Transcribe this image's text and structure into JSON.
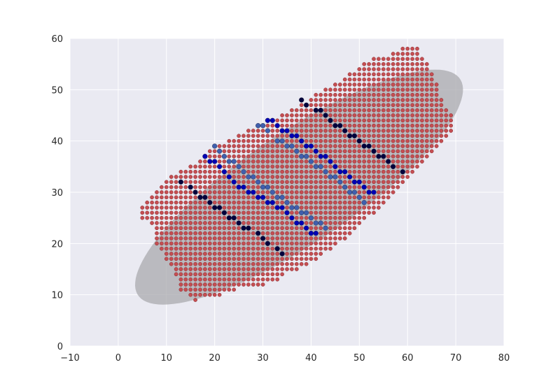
{
  "chart_data": {
    "type": "scatter",
    "title": "",
    "xlabel": "",
    "ylabel": "",
    "xlim": [
      -10,
      80
    ],
    "ylim": [
      0,
      60
    ],
    "xticks": [
      -10,
      0,
      10,
      20,
      30,
      40,
      50,
      60,
      70,
      80
    ],
    "yticks": [
      0,
      10,
      20,
      30,
      40,
      50,
      60
    ],
    "grid": true,
    "legend": "none",
    "colors": {
      "plot_background": "#eaeaf2",
      "grid": "#ffffff",
      "ellipse": "#a9a9ae",
      "red_points": "#c44e52",
      "red_edges": "#8b2a2d",
      "blue_light": "#3f5fad",
      "blue_mid": "#0000b4",
      "blue_dark": "#00003c"
    },
    "ellipse": {
      "center": [
        37.5,
        31.0
      ],
      "semi_major": 39.5,
      "semi_minor": 11.0,
      "angle_deg": 32
    },
    "red_grid": {
      "x_step": 1,
      "y_step": 1,
      "row_extents": [
        [
          9,
          16,
          16
        ],
        [
          10,
          15,
          21
        ],
        [
          11,
          13,
          24
        ],
        [
          12,
          13,
          30
        ],
        [
          13,
          13,
          33
        ],
        [
          14,
          12,
          34
        ],
        [
          15,
          12,
          37
        ],
        [
          16,
          11,
          39
        ],
        [
          17,
          10,
          41
        ],
        [
          18,
          10,
          42
        ],
        [
          19,
          9,
          44
        ],
        [
          20,
          8,
          45
        ],
        [
          21,
          8,
          47
        ],
        [
          22,
          8,
          48
        ],
        [
          23,
          8,
          49
        ],
        [
          24,
          7,
          50
        ],
        [
          25,
          5,
          51
        ],
        [
          26,
          5,
          53
        ],
        [
          27,
          5,
          54
        ],
        [
          28,
          6,
          55
        ],
        [
          29,
          7,
          56
        ],
        [
          30,
          8,
          57
        ],
        [
          31,
          9,
          58
        ],
        [
          32,
          10,
          59
        ],
        [
          33,
          11,
          60
        ],
        [
          34,
          13,
          61
        ],
        [
          35,
          15,
          62
        ],
        [
          36,
          17,
          63
        ],
        [
          37,
          18,
          64
        ],
        [
          38,
          19,
          65
        ],
        [
          39,
          21,
          66
        ],
        [
          40,
          23,
          67
        ],
        [
          41,
          25,
          68
        ],
        [
          42,
          27,
          69
        ],
        [
          43,
          29,
          69
        ],
        [
          44,
          31,
          69
        ],
        [
          45,
          34,
          69
        ],
        [
          46,
          36,
          68
        ],
        [
          47,
          38,
          67
        ],
        [
          48,
          40,
          67
        ],
        [
          49,
          41,
          66
        ],
        [
          50,
          43,
          66
        ],
        [
          51,
          45,
          66
        ],
        [
          52,
          47,
          65
        ],
        [
          53,
          48,
          65
        ],
        [
          54,
          50,
          64
        ],
        [
          55,
          51,
          64
        ],
        [
          56,
          53,
          63
        ],
        [
          57,
          57,
          62
        ],
        [
          58,
          59,
          62
        ]
      ]
    },
    "blue_points": [
      {
        "x": 13,
        "y": 32,
        "tone": "dark"
      },
      {
        "x": 15,
        "y": 31,
        "tone": "dark"
      },
      {
        "x": 16,
        "y": 30,
        "tone": "dark"
      },
      {
        "x": 17,
        "y": 29,
        "tone": "dark"
      },
      {
        "x": 18,
        "y": 29,
        "tone": "dark"
      },
      {
        "x": 19,
        "y": 28,
        "tone": "dark"
      },
      {
        "x": 20,
        "y": 27,
        "tone": "dark"
      },
      {
        "x": 21,
        "y": 27,
        "tone": "dark"
      },
      {
        "x": 22,
        "y": 26,
        "tone": "dark"
      },
      {
        "x": 23,
        "y": 25,
        "tone": "dark"
      },
      {
        "x": 24,
        "y": 25,
        "tone": "dark"
      },
      {
        "x": 25,
        "y": 24,
        "tone": "dark"
      },
      {
        "x": 26,
        "y": 23,
        "tone": "dark"
      },
      {
        "x": 27,
        "y": 23,
        "tone": "dark"
      },
      {
        "x": 29,
        "y": 22,
        "tone": "dark"
      },
      {
        "x": 30,
        "y": 21,
        "tone": "dark"
      },
      {
        "x": 31,
        "y": 20,
        "tone": "dark"
      },
      {
        "x": 33,
        "y": 19,
        "tone": "dark"
      },
      {
        "x": 34,
        "y": 18,
        "tone": "dark"
      },
      {
        "x": 18,
        "y": 37,
        "tone": "mid"
      },
      {
        "x": 19,
        "y": 36,
        "tone": "mid"
      },
      {
        "x": 20,
        "y": 36,
        "tone": "mid"
      },
      {
        "x": 21,
        "y": 35,
        "tone": "mid"
      },
      {
        "x": 22,
        "y": 34,
        "tone": "mid"
      },
      {
        "x": 23,
        "y": 33,
        "tone": "mid"
      },
      {
        "x": 24,
        "y": 32,
        "tone": "mid"
      },
      {
        "x": 25,
        "y": 31,
        "tone": "mid"
      },
      {
        "x": 26,
        "y": 31,
        "tone": "mid"
      },
      {
        "x": 27,
        "y": 30,
        "tone": "mid"
      },
      {
        "x": 28,
        "y": 30,
        "tone": "mid"
      },
      {
        "x": 29,
        "y": 29,
        "tone": "mid"
      },
      {
        "x": 30,
        "y": 29,
        "tone": "mid"
      },
      {
        "x": 31,
        "y": 28,
        "tone": "mid"
      },
      {
        "x": 32,
        "y": 28,
        "tone": "mid"
      },
      {
        "x": 33,
        "y": 27,
        "tone": "mid"
      },
      {
        "x": 34,
        "y": 27,
        "tone": "mid"
      },
      {
        "x": 35,
        "y": 26,
        "tone": "mid"
      },
      {
        "x": 36,
        "y": 25,
        "tone": "mid"
      },
      {
        "x": 37,
        "y": 24,
        "tone": "mid"
      },
      {
        "x": 38,
        "y": 24,
        "tone": "mid"
      },
      {
        "x": 39,
        "y": 23,
        "tone": "mid"
      },
      {
        "x": 40,
        "y": 22,
        "tone": "mid"
      },
      {
        "x": 41,
        "y": 22,
        "tone": "mid"
      },
      {
        "x": 20,
        "y": 39,
        "tone": "light"
      },
      {
        "x": 21,
        "y": 38,
        "tone": "light"
      },
      {
        "x": 22,
        "y": 37,
        "tone": "light"
      },
      {
        "x": 23,
        "y": 36,
        "tone": "light"
      },
      {
        "x": 24,
        "y": 36,
        "tone": "light"
      },
      {
        "x": 25,
        "y": 35,
        "tone": "light"
      },
      {
        "x": 26,
        "y": 34,
        "tone": "light"
      },
      {
        "x": 27,
        "y": 33,
        "tone": "light"
      },
      {
        "x": 28,
        "y": 33,
        "tone": "light"
      },
      {
        "x": 29,
        "y": 32,
        "tone": "light"
      },
      {
        "x": 30,
        "y": 31,
        "tone": "light"
      },
      {
        "x": 31,
        "y": 31,
        "tone": "light"
      },
      {
        "x": 32,
        "y": 30,
        "tone": "light"
      },
      {
        "x": 33,
        "y": 29,
        "tone": "light"
      },
      {
        "x": 34,
        "y": 29,
        "tone": "light"
      },
      {
        "x": 35,
        "y": 28,
        "tone": "light"
      },
      {
        "x": 36,
        "y": 27,
        "tone": "light"
      },
      {
        "x": 37,
        "y": 27,
        "tone": "light"
      },
      {
        "x": 38,
        "y": 26,
        "tone": "light"
      },
      {
        "x": 39,
        "y": 26,
        "tone": "light"
      },
      {
        "x": 40,
        "y": 25,
        "tone": "light"
      },
      {
        "x": 41,
        "y": 24,
        "tone": "light"
      },
      {
        "x": 42,
        "y": 24,
        "tone": "light"
      },
      {
        "x": 43,
        "y": 23,
        "tone": "light"
      },
      {
        "x": 29,
        "y": 43,
        "tone": "light"
      },
      {
        "x": 30,
        "y": 43,
        "tone": "light"
      },
      {
        "x": 31,
        "y": 42,
        "tone": "light"
      },
      {
        "x": 33,
        "y": 40,
        "tone": "light"
      },
      {
        "x": 34,
        "y": 40,
        "tone": "light"
      },
      {
        "x": 35,
        "y": 39,
        "tone": "light"
      },
      {
        "x": 36,
        "y": 39,
        "tone": "light"
      },
      {
        "x": 37,
        "y": 38,
        "tone": "light"
      },
      {
        "x": 38,
        "y": 37,
        "tone": "light"
      },
      {
        "x": 39,
        "y": 37,
        "tone": "light"
      },
      {
        "x": 40,
        "y": 36,
        "tone": "light"
      },
      {
        "x": 41,
        "y": 35,
        "tone": "light"
      },
      {
        "x": 42,
        "y": 35,
        "tone": "light"
      },
      {
        "x": 43,
        "y": 34,
        "tone": "light"
      },
      {
        "x": 44,
        "y": 33,
        "tone": "light"
      },
      {
        "x": 45,
        "y": 33,
        "tone": "light"
      },
      {
        "x": 46,
        "y": 32,
        "tone": "light"
      },
      {
        "x": 47,
        "y": 31,
        "tone": "light"
      },
      {
        "x": 48,
        "y": 30,
        "tone": "light"
      },
      {
        "x": 49,
        "y": 30,
        "tone": "light"
      },
      {
        "x": 50,
        "y": 29,
        "tone": "light"
      },
      {
        "x": 51,
        "y": 28,
        "tone": "light"
      },
      {
        "x": 31,
        "y": 44,
        "tone": "mid"
      },
      {
        "x": 32,
        "y": 44,
        "tone": "mid"
      },
      {
        "x": 33,
        "y": 43,
        "tone": "mid"
      },
      {
        "x": 34,
        "y": 42,
        "tone": "mid"
      },
      {
        "x": 35,
        "y": 42,
        "tone": "mid"
      },
      {
        "x": 36,
        "y": 41,
        "tone": "mid"
      },
      {
        "x": 37,
        "y": 41,
        "tone": "mid"
      },
      {
        "x": 38,
        "y": 40,
        "tone": "mid"
      },
      {
        "x": 39,
        "y": 39,
        "tone": "mid"
      },
      {
        "x": 40,
        "y": 39,
        "tone": "mid"
      },
      {
        "x": 41,
        "y": 38,
        "tone": "mid"
      },
      {
        "x": 42,
        "y": 37,
        "tone": "mid"
      },
      {
        "x": 43,
        "y": 37,
        "tone": "mid"
      },
      {
        "x": 44,
        "y": 36,
        "tone": "mid"
      },
      {
        "x": 45,
        "y": 35,
        "tone": "mid"
      },
      {
        "x": 46,
        "y": 34,
        "tone": "mid"
      },
      {
        "x": 47,
        "y": 34,
        "tone": "mid"
      },
      {
        "x": 48,
        "y": 33,
        "tone": "mid"
      },
      {
        "x": 49,
        "y": 32,
        "tone": "mid"
      },
      {
        "x": 50,
        "y": 32,
        "tone": "mid"
      },
      {
        "x": 51,
        "y": 31,
        "tone": "mid"
      },
      {
        "x": 52,
        "y": 30,
        "tone": "mid"
      },
      {
        "x": 53,
        "y": 30,
        "tone": "mid"
      },
      {
        "x": 38,
        "y": 48,
        "tone": "dark"
      },
      {
        "x": 39,
        "y": 47,
        "tone": "dark"
      },
      {
        "x": 41,
        "y": 46,
        "tone": "dark"
      },
      {
        "x": 42,
        "y": 46,
        "tone": "dark"
      },
      {
        "x": 43,
        "y": 45,
        "tone": "dark"
      },
      {
        "x": 44,
        "y": 44,
        "tone": "dark"
      },
      {
        "x": 45,
        "y": 43,
        "tone": "dark"
      },
      {
        "x": 46,
        "y": 43,
        "tone": "dark"
      },
      {
        "x": 47,
        "y": 42,
        "tone": "dark"
      },
      {
        "x": 48,
        "y": 41,
        "tone": "dark"
      },
      {
        "x": 49,
        "y": 41,
        "tone": "dark"
      },
      {
        "x": 50,
        "y": 40,
        "tone": "dark"
      },
      {
        "x": 51,
        "y": 39,
        "tone": "dark"
      },
      {
        "x": 52,
        "y": 39,
        "tone": "dark"
      },
      {
        "x": 53,
        "y": 38,
        "tone": "dark"
      },
      {
        "x": 54,
        "y": 37,
        "tone": "dark"
      },
      {
        "x": 55,
        "y": 37,
        "tone": "dark"
      },
      {
        "x": 56,
        "y": 36,
        "tone": "dark"
      },
      {
        "x": 57,
        "y": 35,
        "tone": "dark"
      },
      {
        "x": 59,
        "y": 34,
        "tone": "dark"
      }
    ]
  }
}
